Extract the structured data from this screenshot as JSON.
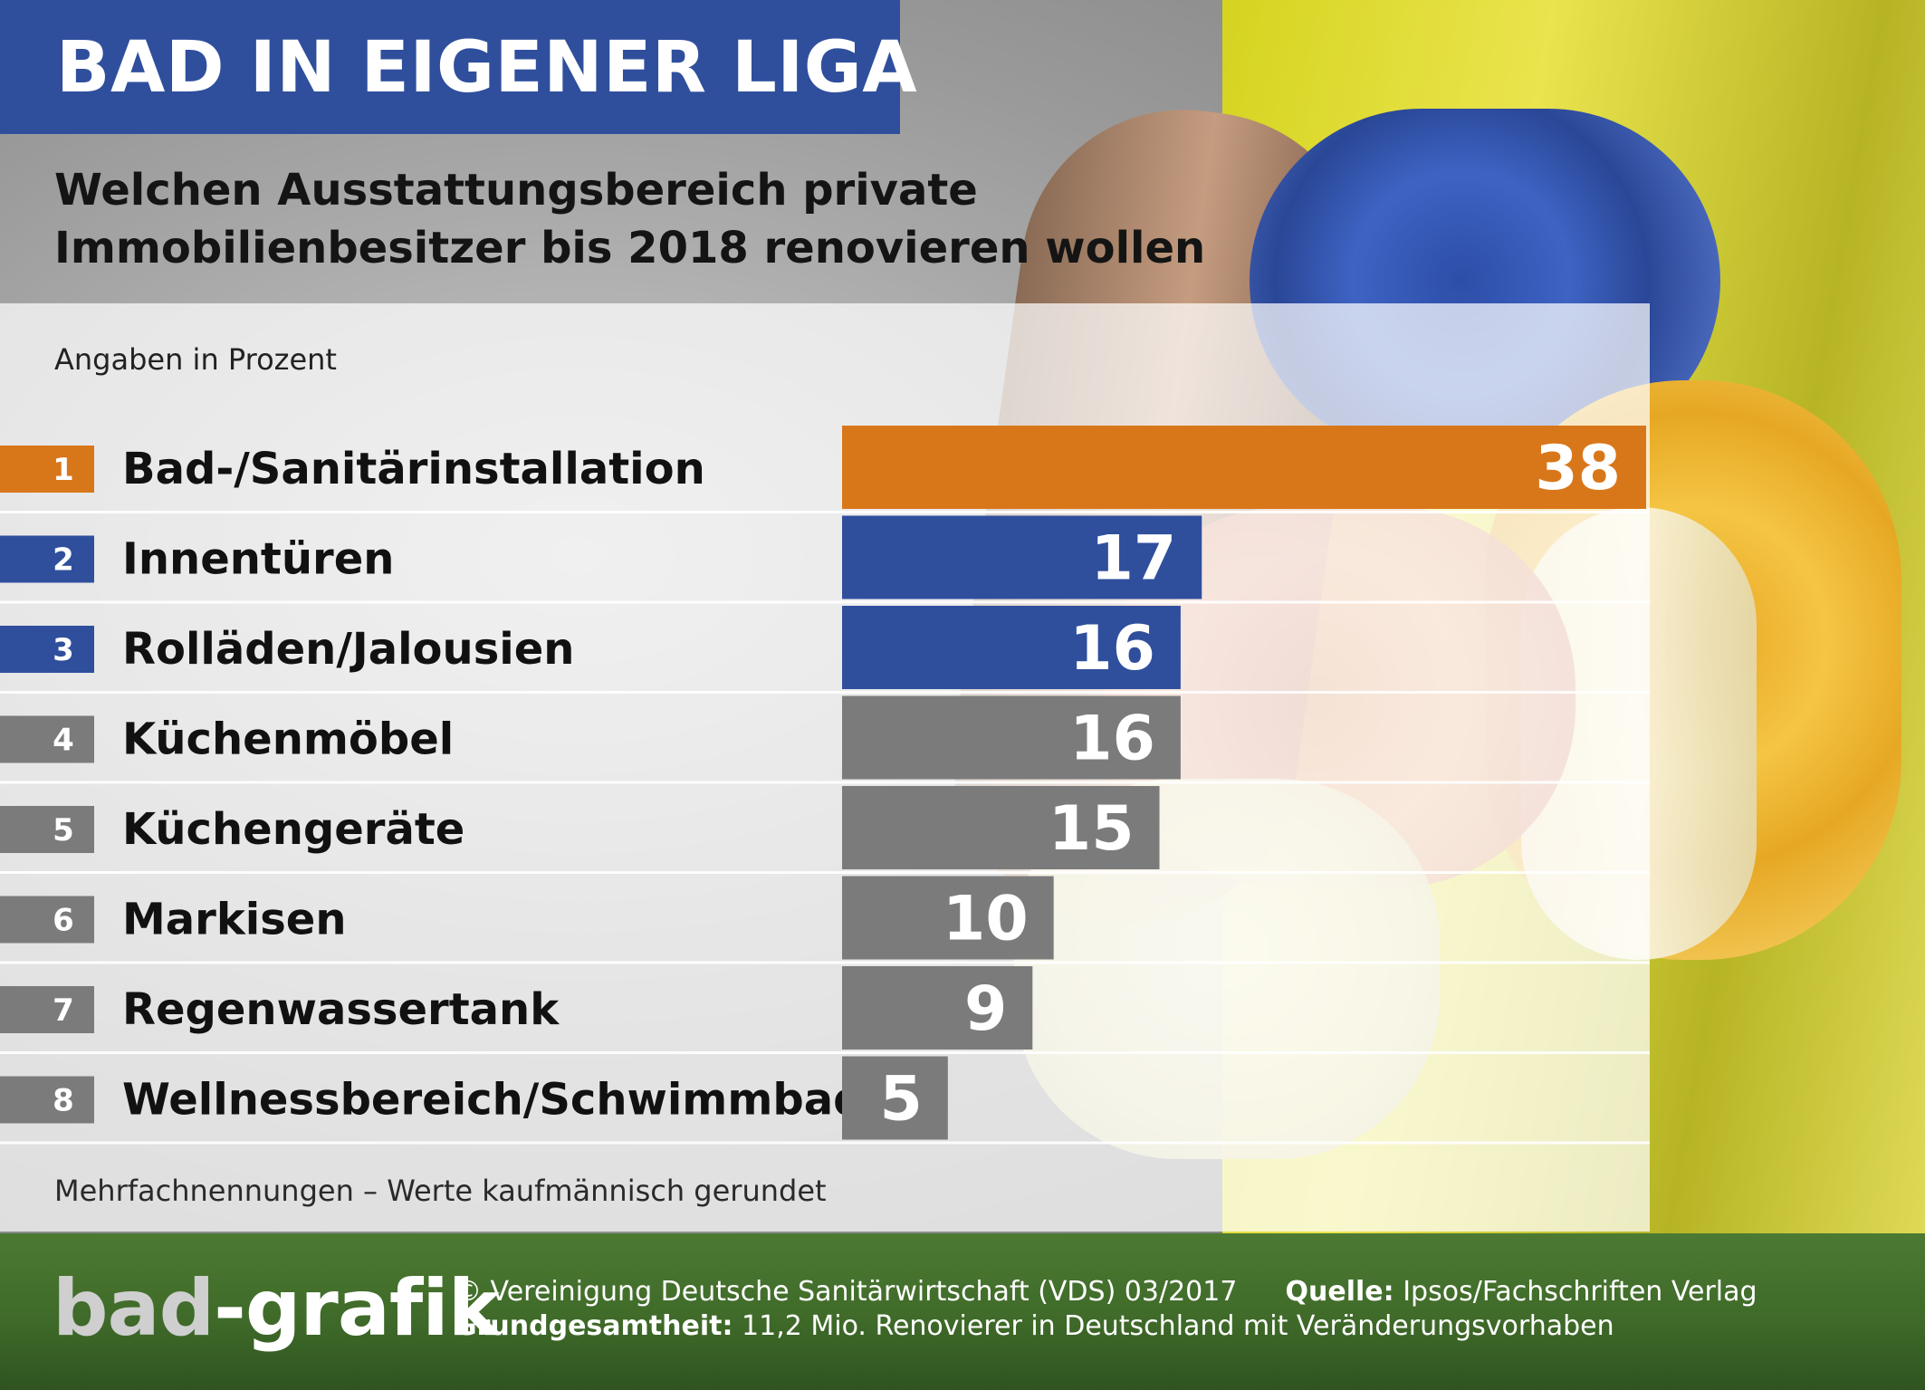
{
  "header": {
    "title": "BAD IN EIGENER LIGA",
    "subtitle": "Welchen Ausstattungsbereich private Immobilienbesitzer bis 2018 renovieren wollen",
    "unit_note": "Angaben in Prozent"
  },
  "footnote": "Mehrfachnennungen – Werte kaufmännisch gerundet",
  "footer": {
    "logo_part1": "bad",
    "logo_part2": "-grafik",
    "copyright": "© Vereinigung Deutsche Sanitärwirtschaft (VDS)  03/2017",
    "source_label": "Quelle:",
    "source_value": "Ipsos/Fachschriften Verlag",
    "base_label": "Grundgesamtheit:",
    "base_value": "11,2 Mio. Renovierer in Deutschland mit Veränderungsvorhaben"
  },
  "colors": {
    "title_bg": "#2f4f9d",
    "rank1": "#d8771a",
    "rank2_3": "#2f4f9d",
    "rank4_8": "#7b7b7b"
  },
  "chart_data": {
    "type": "bar",
    "orientation": "horizontal",
    "title": "BAD IN EIGENER LIGA",
    "subtitle": "Welchen Ausstattungsbereich private Immobilienbesitzer bis 2018 renovieren wollen",
    "unit": "Angaben in Prozent",
    "ranks": [
      "1",
      "2",
      "3",
      "4",
      "5",
      "6",
      "7",
      "8"
    ],
    "categories": [
      "Bad-/Sanitärinstallation",
      "Innentüren",
      "Rolläden/Jalousien",
      "Küchenmöbel",
      "Küchengeräte",
      "Markisen",
      "Regenwassertank",
      "Wellnessbereich/Schwimmbad"
    ],
    "values": [
      38,
      17,
      16,
      16,
      15,
      10,
      9,
      5
    ],
    "bar_colors": [
      "#d8771a",
      "#2f4f9d",
      "#2f4f9d",
      "#7b7b7b",
      "#7b7b7b",
      "#7b7b7b",
      "#7b7b7b",
      "#7b7b7b"
    ],
    "xlim": [
      0,
      38
    ],
    "grid": false,
    "legend": "none"
  }
}
